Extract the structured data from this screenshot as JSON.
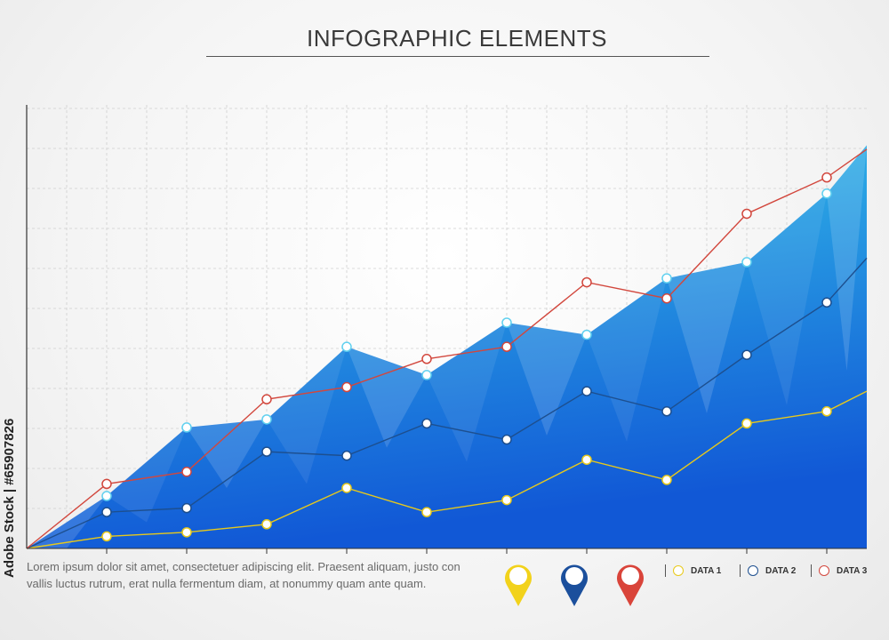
{
  "title": "INFOGRAPHIC ELEMENTS",
  "body_text": {
    "line1": "Lorem ipsum dolor sit amet,  consectetuer adipiscing elit. Praesent aliquam, justo con",
    "line2": "vallis  luctus rutrum, erat  nulla fermentum diam, at nonummy quam ante  quam."
  },
  "watermark": "Adobe Stock | #65907826",
  "pins": [
    {
      "name": "yellow",
      "color": "#f2d21b"
    },
    {
      "name": "blue",
      "color": "#1b4f9c"
    },
    {
      "name": "red",
      "color": "#d9443a"
    }
  ],
  "legend": {
    "position": "bottom-right",
    "items": [
      {
        "label": "DATA 1",
        "color": "#e8c91a"
      },
      {
        "label": "DATA 2",
        "color": "#1d4f8f"
      },
      {
        "label": "DATA 3",
        "color": "#d2473d"
      }
    ]
  },
  "chart_data": {
    "type": "line",
    "title": "INFOGRAPHIC ELEMENTS",
    "xlabel": "",
    "ylabel": "",
    "grid": true,
    "xlim": [
      0,
      10.5
    ],
    "ylim": [
      0,
      11
    ],
    "x": [
      0,
      1,
      2,
      3,
      4,
      5,
      6,
      7,
      8,
      9,
      10,
      10.5
    ],
    "area": {
      "color_top": "#35c6ea",
      "color_bottom": "#1158d6",
      "values": [
        0,
        1.3,
        3,
        3.2,
        5,
        4.3,
        5.6,
        5.3,
        6.7,
        7.1,
        8.8,
        10
      ]
    },
    "series": [
      {
        "name": "DATA 1",
        "color": "#e8c91a",
        "values": [
          0,
          0.3,
          0.4,
          0.6,
          1.5,
          0.9,
          1.2,
          2.2,
          1.7,
          3.1,
          3.4,
          3.9
        ]
      },
      {
        "name": "DATA 2",
        "color": "#1d4f8f",
        "values": [
          0,
          0.9,
          1,
          2.4,
          2.3,
          3.1,
          2.7,
          3.9,
          3.4,
          4.8,
          6.1,
          7.2
        ]
      },
      {
        "name": "DATA 3",
        "color": "#d2473d",
        "values": [
          0,
          1.6,
          1.9,
          3.7,
          4,
          4.7,
          5,
          6.6,
          6.2,
          8.3,
          9.2,
          9.9
        ]
      }
    ]
  }
}
